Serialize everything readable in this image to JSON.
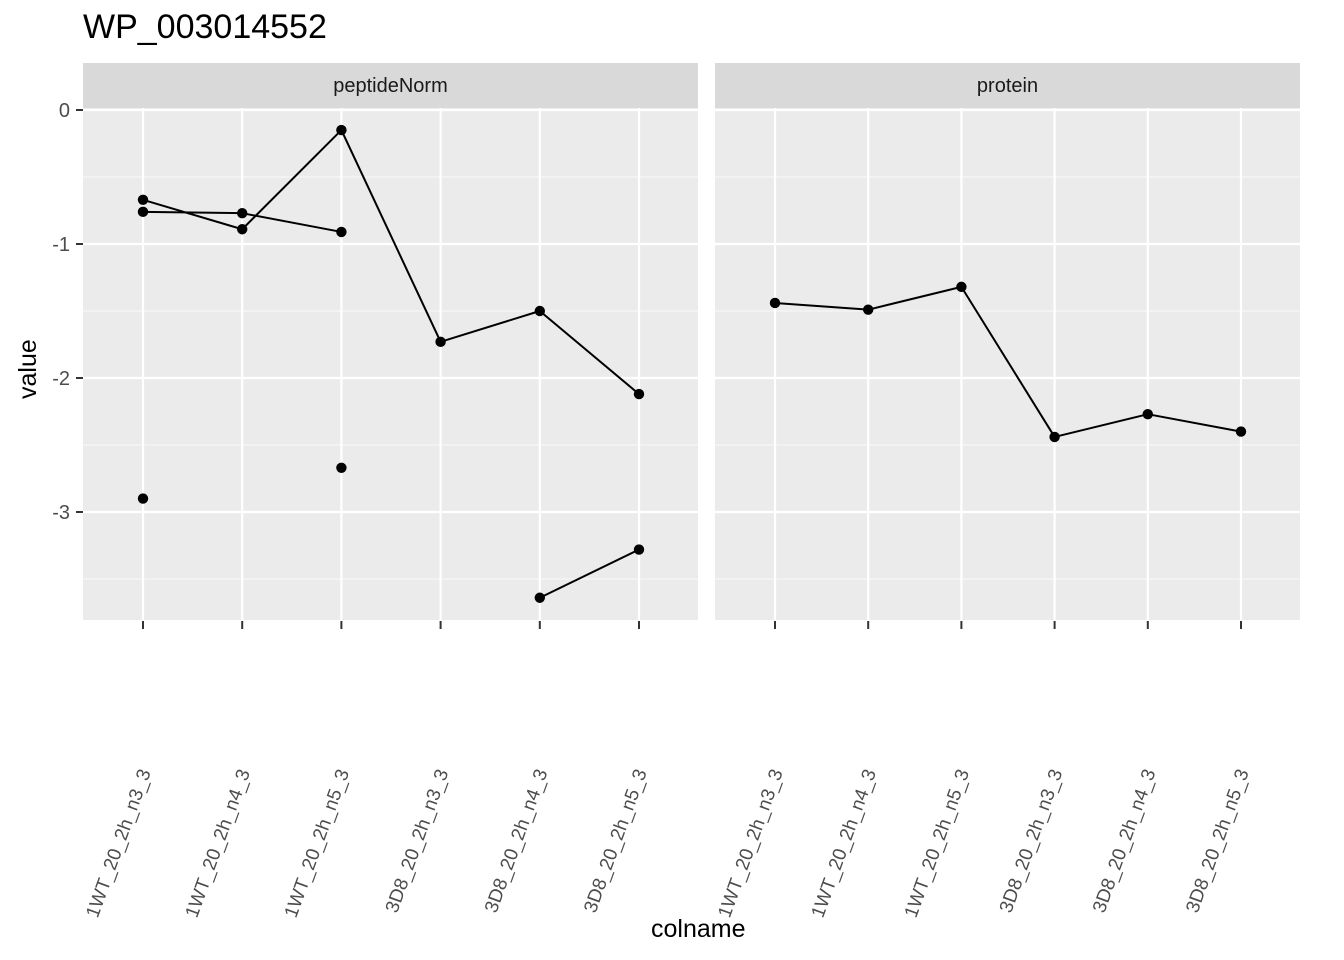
{
  "chart_data": {
    "type": "line",
    "title": "WP_003014552",
    "xlabel": "colname",
    "ylabel": "value",
    "ylim": [
      -3.8,
      0.1
    ],
    "yticks": [
      0,
      -1,
      -2,
      -3
    ],
    "grid": true,
    "facets": [
      {
        "name": "peptideNorm",
        "categories": [
          "1WT_20_2h_n3_3",
          "1WT_20_2h_n4_3",
          "1WT_20_2h_n5_3",
          "3D8_20_2h_n3_3",
          "3D8_20_2h_n4_3",
          "3D8_20_2h_n5_3"
        ],
        "series": [
          {
            "values": [
              -0.67,
              -0.89,
              -0.15,
              -1.73,
              -1.5,
              -2.12
            ]
          },
          {
            "values": [
              -0.76,
              -0.77,
              -0.91,
              null,
              null,
              null
            ]
          },
          {
            "values": [
              -2.9,
              null,
              -2.67,
              null,
              null,
              null
            ]
          },
          {
            "values": [
              null,
              null,
              null,
              null,
              -3.64,
              -3.28
            ]
          }
        ]
      },
      {
        "name": "protein",
        "categories": [
          "1WT_20_2h_n3_3",
          "1WT_20_2h_n4_3",
          "1WT_20_2h_n5_3",
          "3D8_20_2h_n3_3",
          "3D8_20_2h_n4_3",
          "3D8_20_2h_n5_3"
        ],
        "series": [
          {
            "values": [
              -1.44,
              -1.49,
              -1.32,
              -2.44,
              -2.27,
              -2.4
            ]
          }
        ]
      }
    ]
  }
}
